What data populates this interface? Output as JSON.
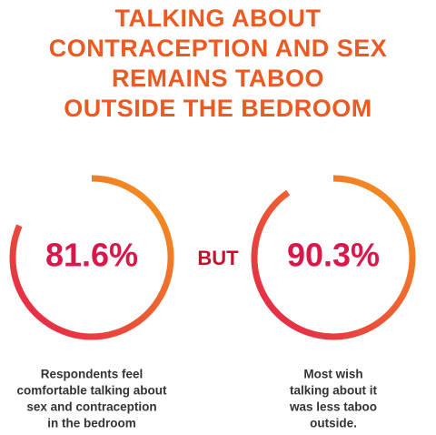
{
  "title_lines": [
    "TALKING ABOUT",
    "CONTRACEPTION AND SEX",
    "REMAINS TABOO",
    "OUTSIDE THE BEDROOM"
  ],
  "gauges": [
    {
      "value": 81.6,
      "value_label": "81.6%",
      "caption_lines": [
        "Respondents feel",
        "comfortable talking about",
        "sex and contraception",
        "in the bedroom"
      ]
    },
    {
      "value": 90.3,
      "value_label": "90.3%",
      "caption_lines": [
        "Most wish",
        "talking about it",
        "was less taboo",
        "outside."
      ]
    }
  ],
  "connector": "BUT"
}
